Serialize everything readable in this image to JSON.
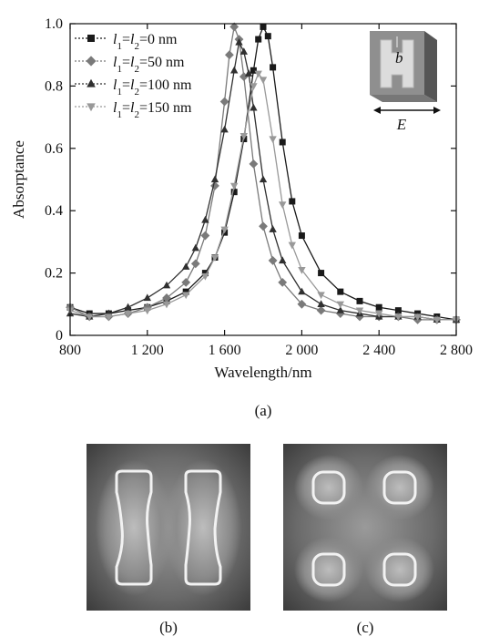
{
  "chart_data": {
    "type": "line",
    "xlabel": "Wavelength/nm",
    "ylabel": "Absorptance",
    "xlim": [
      800,
      2800
    ],
    "ylim": [
      0,
      1.0
    ],
    "xticks": [
      {
        "value": 800,
        "label": "800"
      },
      {
        "value": 1200,
        "label": "1 200"
      },
      {
        "value": 1600,
        "label": "1 600"
      },
      {
        "value": 2000,
        "label": "2 000"
      },
      {
        "value": 2400,
        "label": "2 400"
      },
      {
        "value": 2800,
        "label": "2 800"
      }
    ],
    "yticks": [
      {
        "value": 0,
        "label": "0"
      },
      {
        "value": 0.2,
        "label": "0.2"
      },
      {
        "value": 0.4,
        "label": "0.4"
      },
      {
        "value": 0.6,
        "label": "0.6"
      },
      {
        "value": 0.8,
        "label": "0.8"
      },
      {
        "value": 1.0,
        "label": "1.0"
      }
    ],
    "grid": false,
    "legend_position": "top-left",
    "series": [
      {
        "name_parts": [
          "l",
          "1",
          "=l",
          "2",
          "=0 nm"
        ],
        "marker": "square",
        "color": "#1a1a1a",
        "x": [
          800,
          900,
          1000,
          1100,
          1200,
          1300,
          1400,
          1500,
          1550,
          1600,
          1650,
          1700,
          1750,
          1775,
          1800,
          1825,
          1850,
          1900,
          1950,
          2000,
          2100,
          2200,
          2300,
          2400,
          2500,
          2600,
          2700,
          2800
        ],
        "y": [
          0.09,
          0.07,
          0.07,
          0.08,
          0.09,
          0.11,
          0.14,
          0.2,
          0.25,
          0.33,
          0.46,
          0.63,
          0.85,
          0.95,
          0.99,
          0.96,
          0.86,
          0.62,
          0.43,
          0.32,
          0.2,
          0.14,
          0.11,
          0.09,
          0.08,
          0.07,
          0.06,
          0.05
        ]
      },
      {
        "name_parts": [
          "l",
          "1",
          "=l",
          "2",
          "=50 nm"
        ],
        "marker": "diamond",
        "color": "#7a7a7a",
        "x": [
          800,
          900,
          1000,
          1100,
          1200,
          1300,
          1400,
          1450,
          1500,
          1550,
          1600,
          1625,
          1650,
          1675,
          1700,
          1750,
          1800,
          1850,
          1900,
          2000,
          2100,
          2200,
          2300,
          2400,
          2500,
          2600,
          2700,
          2800
        ],
        "y": [
          0.09,
          0.06,
          0.06,
          0.07,
          0.09,
          0.12,
          0.17,
          0.23,
          0.32,
          0.48,
          0.75,
          0.9,
          0.99,
          0.95,
          0.83,
          0.55,
          0.35,
          0.24,
          0.17,
          0.1,
          0.08,
          0.07,
          0.06,
          0.06,
          0.06,
          0.05,
          0.05,
          0.05
        ]
      },
      {
        "name_parts": [
          "l",
          "1",
          "=l",
          "2",
          "=100 nm"
        ],
        "marker": "triangle-up",
        "color": "#303030",
        "x": [
          800,
          900,
          1000,
          1100,
          1200,
          1300,
          1400,
          1450,
          1500,
          1550,
          1600,
          1650,
          1675,
          1700,
          1725,
          1750,
          1800,
          1850,
          1900,
          2000,
          2100,
          2200,
          2300,
          2400,
          2500,
          2600,
          2700,
          2800
        ],
        "y": [
          0.07,
          0.06,
          0.07,
          0.09,
          0.12,
          0.16,
          0.22,
          0.28,
          0.37,
          0.5,
          0.66,
          0.85,
          0.94,
          0.91,
          0.84,
          0.73,
          0.5,
          0.34,
          0.24,
          0.14,
          0.1,
          0.08,
          0.07,
          0.06,
          0.06,
          0.06,
          0.05,
          0.05
        ]
      },
      {
        "name_parts": [
          "l",
          "1",
          "=l",
          "2",
          "=150 nm"
        ],
        "marker": "triangle-down",
        "color": "#999999",
        "x": [
          800,
          900,
          1000,
          1100,
          1200,
          1300,
          1400,
          1500,
          1550,
          1600,
          1650,
          1700,
          1750,
          1775,
          1800,
          1850,
          1900,
          1950,
          2000,
          2100,
          2200,
          2300,
          2400,
          2500,
          2600,
          2700,
          2800
        ],
        "y": [
          0.08,
          0.06,
          0.06,
          0.07,
          0.08,
          0.1,
          0.13,
          0.19,
          0.25,
          0.34,
          0.48,
          0.64,
          0.8,
          0.84,
          0.82,
          0.63,
          0.42,
          0.29,
          0.21,
          0.13,
          0.1,
          0.08,
          0.07,
          0.06,
          0.06,
          0.05,
          0.05
        ]
      }
    ]
  },
  "inset": {
    "label_b": "b",
    "label_E": "E"
  },
  "captions": {
    "a": "(a)",
    "b": "(b)",
    "c": "(c)"
  }
}
